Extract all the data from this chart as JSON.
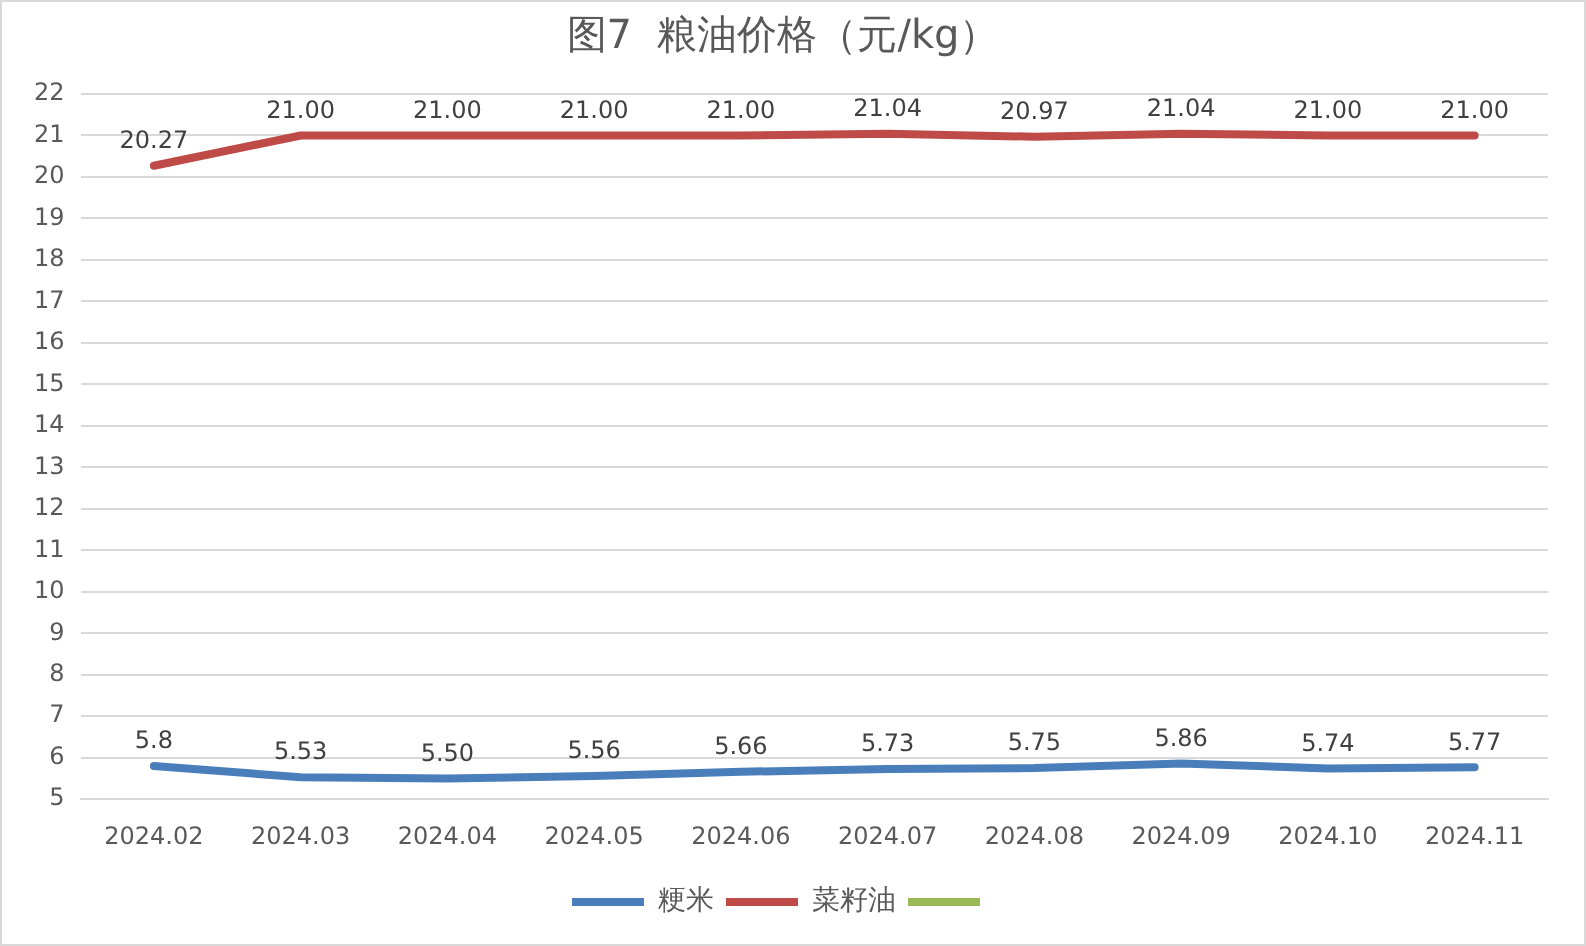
{
  "chart_data": {
    "type": "line",
    "title": "图7  粮油价格（元/kg）",
    "categories": [
      "2024.02",
      "2024.03",
      "2024.04",
      "2024.05",
      "2024.06",
      "2024.07",
      "2024.08",
      "2024.09",
      "2024.10",
      "2024.11"
    ],
    "series": [
      {
        "name": "粳米",
        "color": "#4a7ebb",
        "values": [
          5.8,
          5.53,
          5.5,
          5.56,
          5.66,
          5.73,
          5.75,
          5.86,
          5.74,
          5.77
        ],
        "value_labels": [
          "5.8",
          "5.53",
          "5.50",
          "5.56",
          "5.66",
          "5.73",
          "5.75",
          "5.86",
          "5.74",
          "5.77"
        ]
      },
      {
        "name": "菜籽油",
        "color": "#be4b48",
        "values": [
          20.27,
          21.0,
          21.0,
          21.0,
          21.0,
          21.04,
          20.97,
          21.04,
          21.0,
          21.0
        ],
        "value_labels": [
          "20.27",
          "21.00",
          "21.00",
          "21.00",
          "21.00",
          "21.04",
          "20.97",
          "21.04",
          "21.00",
          "21.00"
        ]
      },
      {
        "color": "#98b954",
        "values": [
          null,
          null,
          null,
          null,
          null,
          null,
          null,
          null,
          null,
          null
        ]
      }
    ],
    "ylim": [
      5,
      22
    ],
    "yticks": [
      5,
      6,
      7,
      8,
      9,
      10,
      11,
      12,
      13,
      14,
      15,
      16,
      17,
      18,
      19,
      20,
      21,
      22
    ],
    "grid": "y",
    "legend": "bottom",
    "marker": "none",
    "line_style": "solid"
  }
}
